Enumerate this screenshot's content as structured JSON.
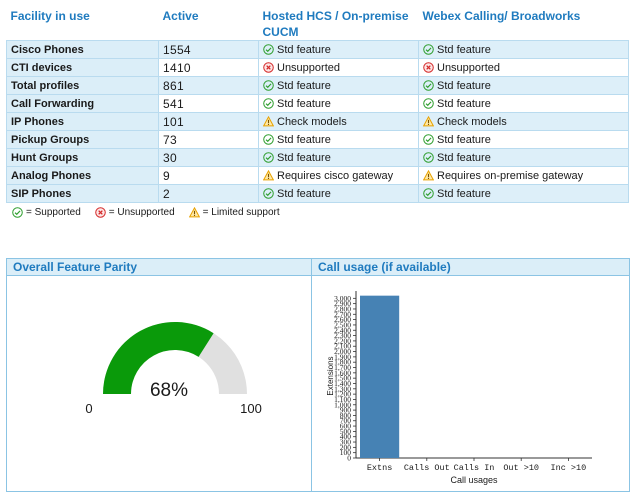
{
  "table": {
    "headers": {
      "facility": "Facility in use",
      "active": "Active",
      "hosted": "Hosted HCS / On-premise CUCM",
      "webex": "Webex Calling/ Broadworks"
    },
    "rows": [
      {
        "facility": "Cisco Phones",
        "active": "1554",
        "hosted": {
          "icon": "check-icon",
          "text": "Std feature"
        },
        "webex": {
          "icon": "check-icon",
          "text": "Std feature"
        }
      },
      {
        "facility": "CTI devices",
        "active": "1410",
        "hosted": {
          "icon": "x-icon",
          "text": "Unsupported"
        },
        "webex": {
          "icon": "x-icon",
          "text": "Unsupported"
        }
      },
      {
        "facility": "Total profiles",
        "active": "861",
        "hosted": {
          "icon": "check-icon",
          "text": "Std feature"
        },
        "webex": {
          "icon": "check-icon",
          "text": "Std feature"
        }
      },
      {
        "facility": "Call Forwarding",
        "active": "541",
        "hosted": {
          "icon": "check-icon",
          "text": "Std feature"
        },
        "webex": {
          "icon": "check-icon",
          "text": "Std feature"
        }
      },
      {
        "facility": "IP Phones",
        "active": "101",
        "hosted": {
          "icon": "warning-icon",
          "text": "Check models"
        },
        "webex": {
          "icon": "warning-icon",
          "text": "Check models"
        }
      },
      {
        "facility": "Pickup Groups",
        "active": "73",
        "hosted": {
          "icon": "check-icon",
          "text": "Std feature"
        },
        "webex": {
          "icon": "check-icon",
          "text": "Std feature"
        }
      },
      {
        "facility": "Hunt Groups",
        "active": "30",
        "hosted": {
          "icon": "check-icon",
          "text": "Std feature"
        },
        "webex": {
          "icon": "check-icon",
          "text": "Std feature"
        }
      },
      {
        "facility": "Analog Phones",
        "active": "9",
        "hosted": {
          "icon": "warning-icon",
          "text": "Requires cisco gateway"
        },
        "webex": {
          "icon": "warning-icon",
          "text": "Requires on-premise gateway"
        }
      },
      {
        "facility": "SIP Phones",
        "active": "2",
        "hosted": {
          "icon": "check-icon",
          "text": "Std feature"
        },
        "webex": {
          "icon": "check-icon",
          "text": "Std feature"
        }
      }
    ]
  },
  "legend": {
    "supported": "= Supported",
    "unsupported": "= Unsupported",
    "limited": "= Limited support"
  },
  "parity_panel": {
    "title": "Overall Feature Parity",
    "value": 68,
    "value_label": "68%",
    "min_label": "0",
    "max_label": "100"
  },
  "usage_panel": {
    "title": "Call usage (if available)"
  },
  "colors": {
    "accent": "#1f7bbf",
    "gauge_fill": "#0a9a0a",
    "gauge_track": "#e0e0e0",
    "bar": "#4682b4",
    "check": "#2e9e2e",
    "cross": "#d42a2a",
    "warning": "#e8a200"
  },
  "chart_data": {
    "type": "bar",
    "categories": [
      "Extns",
      "Calls Out",
      "Calls In",
      "Out >10",
      "Inc >10"
    ],
    "values": [
      3050,
      0,
      0,
      0,
      0
    ],
    "xlabel": "Call usages",
    "ylabel": "Extensions",
    "ylim": [
      0,
      3100
    ],
    "yticks": [
      0,
      100,
      200,
      300,
      400,
      500,
      600,
      700,
      800,
      900,
      1000,
      1100,
      1200,
      1300,
      1400,
      1500,
      1600,
      1700,
      1800,
      1900,
      2000,
      2100,
      2200,
      2300,
      2400,
      2500,
      2600,
      2700,
      2800,
      2900,
      3000
    ],
    "ytick_labels": [
      "0",
      "100",
      "200",
      "300",
      "400",
      "500",
      "600",
      "700",
      "800",
      "900",
      "1,000",
      "1,100",
      "1,200",
      "1,300",
      "1,400",
      "1,500",
      "1,600",
      "1,700",
      "1,800",
      "1,900",
      "2,000",
      "2,100",
      "2,200",
      "2,300",
      "2,400",
      "2,500",
      "2,600",
      "2,700",
      "2,800",
      "2,900",
      "3,000"
    ]
  }
}
